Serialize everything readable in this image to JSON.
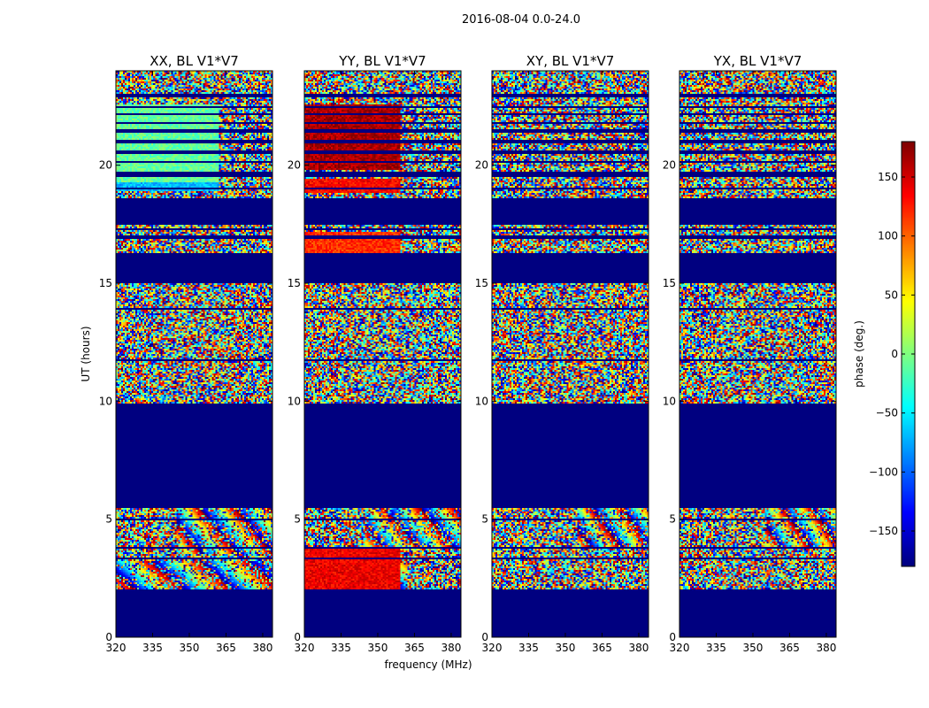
{
  "chart_data": {
    "type": "heatmap",
    "suptitle": "2016-08-04 0.0-24.0",
    "xlabel": "frequency (MHz)",
    "ylabel": "UT (hours)",
    "xlim": [
      320,
      384
    ],
    "ylim": [
      0,
      24
    ],
    "xticks": [
      320,
      335,
      350,
      365,
      380
    ],
    "yticks": [
      0,
      5,
      10,
      15,
      20
    ],
    "colormap": "jet",
    "colorbar": {
      "label": "phase (deg.)",
      "range": [
        -180,
        180
      ],
      "ticks": [
        -150,
        -100,
        -50,
        0,
        50,
        100,
        150
      ],
      "tick_labels": [
        "−150",
        "−100",
        "−50",
        "0",
        "50",
        "100",
        "150"
      ]
    },
    "panels": [
      {
        "title": "XX, BL V1*V7",
        "noise_amp": 1.0,
        "coherent_blocks": [
          {
            "t": [
              19.0,
              22.6
            ],
            "f": [
              320,
              362
            ],
            "phase": -10
          },
          {
            "t": [
              18.9,
              19.3
            ],
            "f": [
              320,
              362
            ],
            "phase": -70
          }
        ],
        "fringe_blocks": [
          {
            "t": [
              2.0,
              3.2
            ],
            "f": [
              320,
              384
            ],
            "base_phase": 0,
            "rate": 18
          },
          {
            "t": [
              3.5,
              5.5
            ],
            "f": [
              345,
              384
            ],
            "base_phase": 30,
            "rate": 25
          }
        ]
      },
      {
        "title": "YY, BL V1*V7",
        "noise_amp": 1.0,
        "coherent_blocks": [
          {
            "t": [
              19.8,
              22.6
            ],
            "f": [
              320,
              359
            ],
            "phase": 165
          },
          {
            "t": [
              18.8,
              19.4
            ],
            "f": [
              320,
              359
            ],
            "phase": 135
          },
          {
            "t": [
              16.3,
              17.2
            ],
            "f": [
              320,
              359
            ],
            "phase": 120
          },
          {
            "t": [
              2.0,
              3.8
            ],
            "f": [
              320,
              359
            ],
            "phase": 140
          }
        ],
        "fringe_blocks": [
          {
            "t": [
              2.0,
              3.6
            ],
            "f": [
              320,
              362
            ],
            "base_phase": 90,
            "rate": 20
          },
          {
            "t": [
              3.8,
              5.5
            ],
            "f": [
              345,
              384
            ],
            "base_phase": 60,
            "rate": 25
          }
        ]
      },
      {
        "title": "XY, BL V1*V7",
        "noise_amp": 1.0,
        "coherent_blocks": [],
        "fringe_blocks": [
          {
            "t": [
              3.8,
              5.5
            ],
            "f": [
              355,
              384
            ],
            "base_phase": 10,
            "rate": 30
          }
        ]
      },
      {
        "title": "YX, BL V1*V7",
        "noise_amp": 1.0,
        "coherent_blocks": [],
        "fringe_blocks": [
          {
            "t": [
              3.8,
              5.5
            ],
            "f": [
              355,
              384
            ],
            "base_phase": -20,
            "rate": 30
          }
        ]
      }
    ],
    "data_rows_ut": [
      [
        2.0,
        5.5
      ],
      [
        9.9,
        15.0
      ],
      [
        16.3,
        17.5
      ],
      [
        18.6,
        19.5
      ],
      [
        19.7,
        22.9
      ],
      [
        23.0,
        24.0
      ]
    ],
    "flag_gaps_ut": [
      [
        3.3,
        3.38
      ],
      [
        3.75,
        3.85
      ],
      [
        4.95,
        5.02
      ],
      [
        10.85,
        10.9
      ],
      [
        11.7,
        11.75
      ],
      [
        12.5,
        12.55
      ],
      [
        13.1,
        13.15
      ],
      [
        13.9,
        13.95
      ],
      [
        14.6,
        14.65
      ],
      [
        16.55,
        16.6
      ],
      [
        16.9,
        17.0
      ],
      [
        17.25,
        17.35
      ],
      [
        19.0,
        19.05
      ],
      [
        20.1,
        20.2
      ],
      [
        20.5,
        20.6
      ],
      [
        20.95,
        21.05
      ],
      [
        21.4,
        21.5
      ],
      [
        21.75,
        21.85
      ],
      [
        22.1,
        22.2
      ],
      [
        22.4,
        22.5
      ]
    ]
  }
}
